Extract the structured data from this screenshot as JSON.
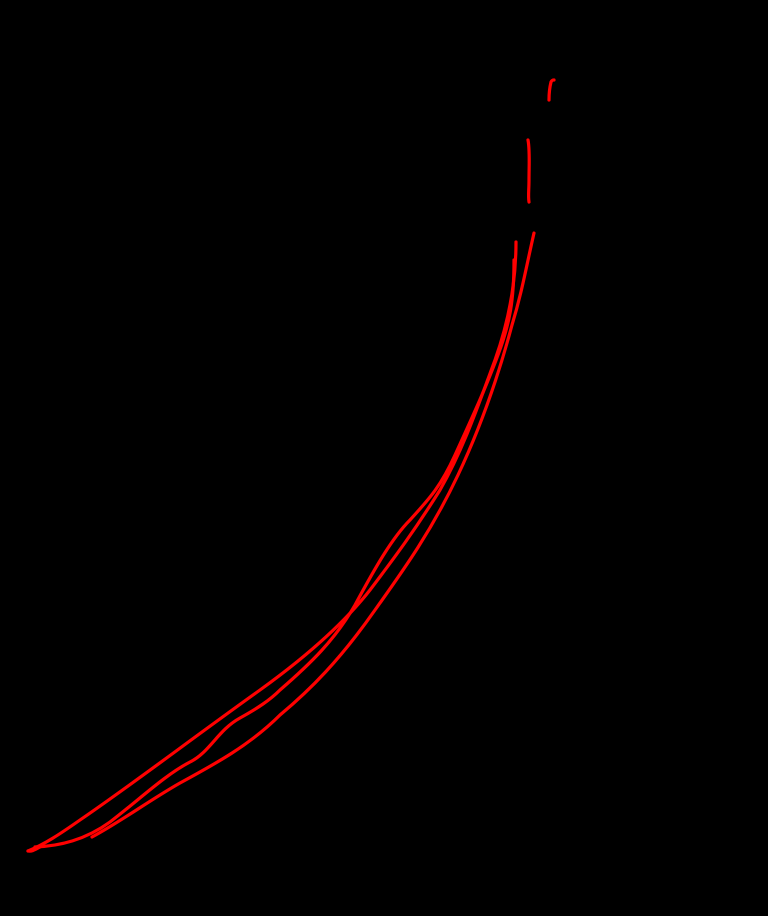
{
  "canvas": {
    "background_color": "#000000",
    "stroke_color": "#ff0000",
    "stroke_count": 6
  }
}
